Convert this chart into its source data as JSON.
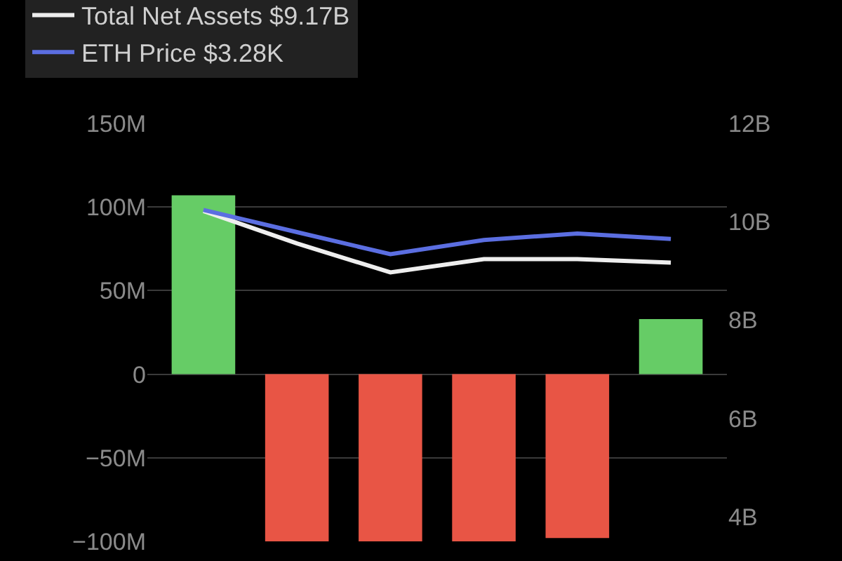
{
  "chart_data": {
    "type": "bar",
    "categories": [
      null,
      null,
      null,
      null,
      null,
      null
    ],
    "values": [
      107,
      -100,
      -100,
      -100,
      -98,
      33
    ],
    "colors": [
      "#66cc66",
      "#e85545",
      "#e85545",
      "#e85545",
      "#e85545",
      "#66cc66"
    ],
    "series": [
      {
        "name": "Total Net Assets $9.17B",
        "type": "line",
        "axis": "y2",
        "color": "#eeeeee",
        "values": [
          10.22,
          9.56,
          8.97,
          9.24,
          9.24,
          9.17
        ]
      },
      {
        "name": "ETH Price $3.28K",
        "type": "line",
        "axis": "y2",
        "color": "#5b6ee1",
        "values": [
          10.24,
          9.79,
          9.34,
          9.63,
          9.76,
          9.65
        ]
      }
    ],
    "ylim": [
      -100,
      150
    ],
    "yticks": [
      {
        "value": -100,
        "label": "−100M"
      },
      {
        "value": -50,
        "label": "−50M"
      },
      {
        "value": 0,
        "label": "0"
      },
      {
        "value": 50,
        "label": "50M"
      },
      {
        "value": 100,
        "label": "100M"
      },
      {
        "value": 150,
        "label": "150M"
      }
    ],
    "y2lim": [
      3.5,
      12
    ],
    "y2ticks": [
      {
        "value": 4,
        "label": "4B"
      },
      {
        "value": 6,
        "label": "6B"
      },
      {
        "value": 8,
        "label": "8B"
      },
      {
        "value": 10,
        "label": "10B"
      },
      {
        "value": 12,
        "label": "12B"
      }
    ],
    "grid": "y",
    "legend": "top left",
    "tick_labels": "y"
  }
}
